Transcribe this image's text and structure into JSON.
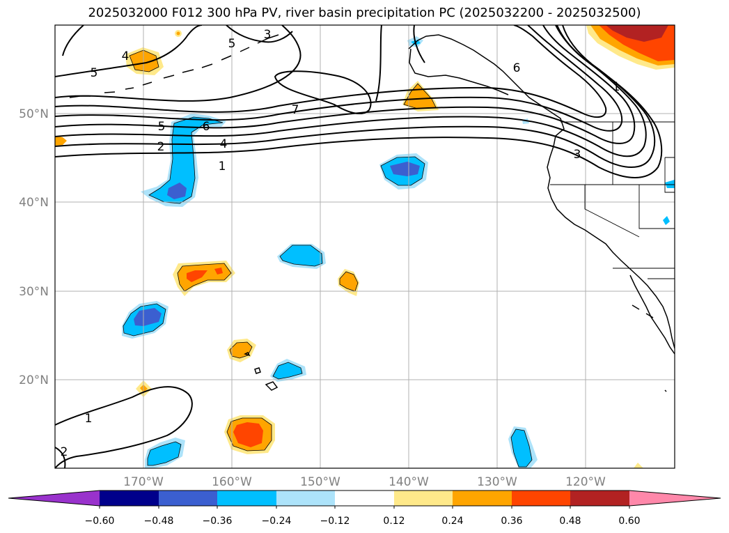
{
  "title": "2025032000 F012 300 hPa PV, river basin precipitation PC (2025032200 - 2025032500)",
  "map": {
    "lat_labels": [
      "50°N",
      "40°N",
      "30°N",
      "20°N"
    ],
    "lon_labels": [
      "170°W",
      "160°W",
      "150°W",
      "140°W",
      "130°W",
      "120°W"
    ],
    "contour_labels": [
      "5",
      "3",
      "4",
      "6",
      "5",
      "7",
      "5",
      "6",
      "2",
      "4",
      "1",
      "1",
      "3",
      "1",
      "2"
    ]
  },
  "colorbar": {
    "tick_labels": [
      "−0.60",
      "−0.48",
      "−0.36",
      "−0.24",
      "−0.12",
      "0.12",
      "0.24",
      "0.36",
      "0.48",
      "0.60"
    ],
    "colors": [
      "#9932cc",
      "#00008b",
      "#3b5fd0",
      "#00bfff",
      "#ade3fa",
      "#ffffff",
      "#ffe98a",
      "#ffa500",
      "#ff4500",
      "#b22222",
      "#ff88aa"
    ]
  }
}
